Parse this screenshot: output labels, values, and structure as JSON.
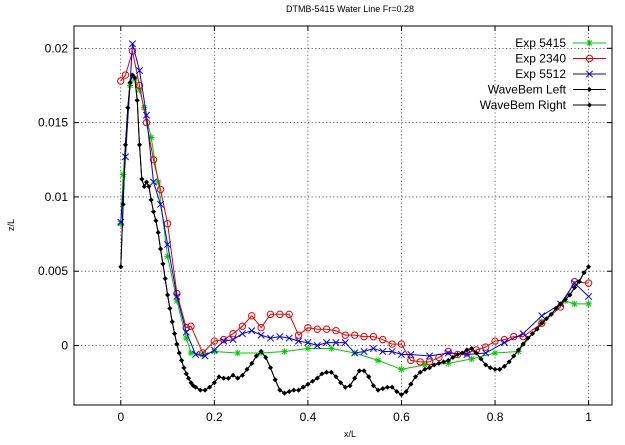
{
  "chart_data": {
    "type": "line",
    "title": "DTMB-5415 Water Line Fr=0.28",
    "xlabel": "x/L",
    "ylabel": "z/L",
    "xlim": [
      -0.1,
      1.05
    ],
    "ylim": [
      -0.004,
      0.0215
    ],
    "xticks": [
      0,
      0.2,
      0.4,
      0.6,
      0.8,
      1
    ],
    "xtick_labels": [
      "0",
      "0.2",
      "0.4",
      "0.6",
      "0.8",
      "1"
    ],
    "yticks": [
      0,
      0.005,
      0.01,
      0.015,
      0.02
    ],
    "ytick_labels": [
      "0",
      "0.005",
      "0.01",
      "0.015",
      "0.02"
    ],
    "grid": true,
    "legend_position": "top-right",
    "series": [
      {
        "name": "Exp 5415",
        "color": "#00cc00",
        "marker": "star",
        "x": [
          0,
          0.005,
          0.02,
          0.03,
          0.04,
          0.05,
          0.065,
          0.08,
          0.1,
          0.12,
          0.14,
          0.15,
          0.175,
          0.2,
          0.25,
          0.3,
          0.35,
          0.4,
          0.45,
          0.5,
          0.55,
          0.6,
          0.65,
          0.7,
          0.75,
          0.8,
          0.85,
          0.9,
          0.95,
          0.97,
          1.0
        ],
        "y": [
          0.0082,
          0.0115,
          0.0175,
          0.018,
          0.0172,
          0.016,
          0.014,
          0.011,
          0.006,
          0.003,
          0.0005,
          -0.0005,
          -0.0006,
          -0.0004,
          -0.0005,
          -0.0005,
          -0.0004,
          -0.0002,
          -0.0002,
          -0.0005,
          -0.001,
          -0.0016,
          -0.0013,
          -0.0012,
          -0.0009,
          -0.0005,
          -0.0004,
          0.0016,
          0.003,
          0.0028,
          0.0028
        ]
      },
      {
        "name": "Exp 2340",
        "color": "#ee0000",
        "marker": "circle",
        "x": [
          0,
          0.01,
          0.025,
          0.04,
          0.055,
          0.07,
          0.085,
          0.1,
          0.12,
          0.14,
          0.15,
          0.175,
          0.2,
          0.22,
          0.24,
          0.26,
          0.28,
          0.3,
          0.32,
          0.34,
          0.36,
          0.38,
          0.4,
          0.42,
          0.44,
          0.46,
          0.48,
          0.5,
          0.52,
          0.54,
          0.56,
          0.58,
          0.6,
          0.62,
          0.64,
          0.66,
          0.68,
          0.7,
          0.72,
          0.74,
          0.76,
          0.78,
          0.8,
          0.82,
          0.84,
          0.86,
          0.9,
          0.94,
          0.97,
          1.0
        ],
        "y": [
          0.0178,
          0.0182,
          0.0198,
          0.0175,
          0.015,
          0.0125,
          0.0105,
          0.0082,
          0.0035,
          0.0012,
          0.0013,
          -0.0005,
          0.0003,
          0.0004,
          0.0008,
          0.0013,
          0.002,
          0.0012,
          0.0021,
          0.0021,
          0.0021,
          0.0007,
          0.0012,
          0.0011,
          0.0011,
          0.001,
          0.0007,
          0.0007,
          0.0006,
          0.0006,
          0.0004,
          0.0001,
          0.0001,
          -0.001,
          -0.0011,
          -0.0011,
          -0.0008,
          -0.0004,
          -0.0006,
          -0.0005,
          -0.0003,
          -0.0001,
          0.0003,
          0.0004,
          0.0006,
          0.0006,
          0.0015,
          0.0026,
          0.0043,
          0.0042
        ]
      },
      {
        "name": "Exp 5512",
        "color": "#0000ee",
        "marker": "cross",
        "x": [
          0,
          0.01,
          0.025,
          0.04,
          0.055,
          0.07,
          0.085,
          0.1,
          0.12,
          0.14,
          0.16,
          0.18,
          0.2,
          0.22,
          0.24,
          0.26,
          0.28,
          0.3,
          0.32,
          0.34,
          0.36,
          0.38,
          0.4,
          0.42,
          0.44,
          0.46,
          0.48,
          0.5,
          0.52,
          0.54,
          0.56,
          0.58,
          0.6,
          0.62,
          0.66,
          0.7,
          0.74,
          0.78,
          0.82,
          0.86,
          0.9,
          0.94,
          0.97,
          1.0
        ],
        "y": [
          0.0083,
          0.0127,
          0.0203,
          0.0185,
          0.0155,
          0.011,
          0.0095,
          0.0068,
          0.0033,
          0.0009,
          -0.0006,
          -0.0007,
          -0.0003,
          0.0003,
          0.0004,
          0.0008,
          0.001,
          0.0007,
          0.0005,
          0.0006,
          0.0005,
          0.0003,
          0.0002,
          0.0,
          0.0002,
          0.0002,
          0.0002,
          -0.0005,
          -0.0004,
          -0.0002,
          -0.0004,
          -0.0004,
          -0.0006,
          -0.0006,
          -0.0007,
          -0.0005,
          -0.0006,
          -0.0005,
          0.0002,
          0.0008,
          0.002,
          0.0028,
          0.0042,
          0.0033
        ]
      },
      {
        "name": "WaveBem Left",
        "color": "#000000",
        "marker": "diamond",
        "x": [
          0,
          0.005,
          0.01,
          0.015,
          0.02,
          0.025,
          0.03,
          0.035,
          0.04,
          0.045,
          0.05,
          0.055,
          0.06,
          0.065,
          0.07,
          0.075,
          0.08,
          0.085,
          0.09,
          0.095,
          0.1,
          0.105,
          0.11,
          0.115,
          0.12,
          0.125,
          0.13,
          0.135,
          0.14,
          0.145,
          0.15,
          0.155,
          0.16,
          0.17,
          0.18,
          0.19,
          0.2,
          0.21,
          0.22,
          0.23,
          0.24,
          0.25,
          0.26,
          0.27,
          0.28,
          0.29,
          0.3,
          0.31,
          0.32,
          0.33,
          0.34,
          0.35,
          0.36,
          0.37,
          0.38,
          0.39,
          0.4,
          0.41,
          0.42,
          0.43,
          0.44,
          0.45,
          0.46,
          0.47,
          0.48,
          0.49,
          0.5,
          0.51,
          0.52,
          0.53,
          0.54,
          0.55,
          0.56,
          0.57,
          0.58,
          0.59,
          0.6,
          0.61,
          0.62,
          0.63,
          0.64,
          0.65,
          0.66,
          0.67,
          0.68,
          0.69,
          0.7,
          0.71,
          0.72,
          0.73,
          0.74,
          0.75,
          0.76,
          0.77,
          0.78,
          0.79,
          0.8,
          0.81,
          0.82,
          0.83,
          0.84,
          0.85,
          0.86,
          0.87,
          0.88,
          0.89,
          0.9,
          0.91,
          0.92,
          0.93,
          0.94,
          0.95,
          0.96,
          0.97,
          0.98,
          0.99,
          1.0
        ],
        "y": [
          0.0053,
          0.0095,
          0.0135,
          0.016,
          0.0177,
          0.0182,
          0.018,
          0.0165,
          0.0135,
          0.0112,
          0.0107,
          0.011,
          0.0107,
          0.0098,
          0.009,
          0.0084,
          0.0076,
          0.0065,
          0.0055,
          0.0045,
          0.0034,
          0.0025,
          0.0016,
          0.0008,
          0.0001,
          -0.0005,
          -0.001,
          -0.0015,
          -0.0019,
          -0.0022,
          -0.0025,
          -0.0027,
          -0.0028,
          -0.003,
          -0.003,
          -0.0028,
          -0.0025,
          -0.0021,
          -0.0022,
          -0.0022,
          -0.002,
          -0.0022,
          -0.002,
          -0.0016,
          -0.0012,
          -0.0007,
          -0.0004,
          -0.0008,
          -0.0015,
          -0.0023,
          -0.003,
          -0.0032,
          -0.0031,
          -0.003,
          -0.003,
          -0.0028,
          -0.0026,
          -0.0024,
          -0.0022,
          -0.0019,
          -0.0018,
          -0.0018,
          -0.0021,
          -0.0025,
          -0.0028,
          -0.0027,
          -0.0022,
          -0.0017,
          -0.0017,
          -0.0021,
          -0.0027,
          -0.003,
          -0.0029,
          -0.0028,
          -0.0028,
          -0.0031,
          -0.0033,
          -0.0031,
          -0.0026,
          -0.0021,
          -0.0018,
          -0.0016,
          -0.0015,
          -0.0013,
          -0.0012,
          -0.0011,
          -0.001,
          -0.0008,
          -0.0006,
          -0.0005,
          -0.0003,
          -0.0002,
          -0.0005,
          -0.0009,
          -0.0013,
          -0.0015,
          -0.0016,
          -0.0016,
          -0.0014,
          -0.0011,
          -0.0007,
          -0.0003,
          0.0001,
          0.0005,
          0.0008,
          0.0011,
          0.0015,
          0.0018,
          0.0021,
          0.0025,
          0.0028,
          0.0031,
          0.0034,
          0.0039,
          0.0043,
          0.0049,
          0.0053
        ]
      },
      {
        "name": "WaveBem Right",
        "color": "#000000",
        "marker": "diamond",
        "x": [
          0,
          0.005,
          0.01,
          0.015,
          0.02,
          0.025,
          0.03,
          0.035,
          0.04,
          0.045,
          0.05,
          0.055,
          0.06,
          0.065,
          0.07,
          0.075,
          0.08,
          0.085,
          0.09,
          0.095,
          0.1,
          0.105,
          0.11,
          0.115,
          0.12,
          0.125,
          0.13,
          0.135,
          0.14,
          0.145,
          0.15,
          0.155,
          0.16,
          0.17,
          0.18,
          0.19,
          0.2,
          0.21,
          0.22,
          0.23,
          0.24,
          0.25,
          0.26,
          0.27,
          0.28,
          0.29,
          0.3,
          0.31,
          0.32,
          0.33,
          0.34,
          0.35,
          0.36,
          0.37,
          0.38,
          0.39,
          0.4,
          0.41,
          0.42,
          0.43,
          0.44,
          0.45,
          0.46,
          0.47,
          0.48,
          0.49,
          0.5,
          0.51,
          0.52,
          0.53,
          0.54,
          0.55,
          0.56,
          0.57,
          0.58,
          0.59,
          0.6,
          0.61,
          0.62,
          0.63,
          0.64,
          0.65,
          0.66,
          0.67,
          0.68,
          0.69,
          0.7,
          0.71,
          0.72,
          0.73,
          0.74,
          0.75,
          0.76,
          0.77,
          0.78,
          0.79,
          0.8,
          0.81,
          0.82,
          0.83,
          0.84,
          0.85,
          0.86,
          0.87,
          0.88,
          0.89,
          0.9,
          0.91,
          0.92,
          0.93,
          0.94,
          0.95,
          0.96,
          0.97,
          0.98,
          0.99,
          1.0
        ],
        "y": [
          0.0053,
          0.0095,
          0.0135,
          0.016,
          0.0177,
          0.0182,
          0.018,
          0.0165,
          0.0135,
          0.0112,
          0.0107,
          0.011,
          0.0107,
          0.0098,
          0.009,
          0.0084,
          0.0076,
          0.0065,
          0.0055,
          0.0045,
          0.0034,
          0.0025,
          0.0016,
          0.0008,
          0.0001,
          -0.0005,
          -0.001,
          -0.0015,
          -0.0019,
          -0.0022,
          -0.0025,
          -0.0027,
          -0.0028,
          -0.003,
          -0.003,
          -0.0028,
          -0.0025,
          -0.0021,
          -0.0022,
          -0.0022,
          -0.002,
          -0.0022,
          -0.002,
          -0.0016,
          -0.0012,
          -0.0007,
          -0.0004,
          -0.0008,
          -0.0015,
          -0.0023,
          -0.003,
          -0.0032,
          -0.0031,
          -0.003,
          -0.003,
          -0.0028,
          -0.0026,
          -0.0024,
          -0.0022,
          -0.0019,
          -0.0018,
          -0.0018,
          -0.0021,
          -0.0025,
          -0.0028,
          -0.0027,
          -0.0022,
          -0.0017,
          -0.0017,
          -0.0021,
          -0.0027,
          -0.003,
          -0.0029,
          -0.0028,
          -0.0028,
          -0.0031,
          -0.0033,
          -0.0031,
          -0.0026,
          -0.0021,
          -0.0018,
          -0.0016,
          -0.0015,
          -0.0013,
          -0.0012,
          -0.0011,
          -0.001,
          -0.0008,
          -0.0006,
          -0.0005,
          -0.0003,
          -0.0002,
          -0.0005,
          -0.0009,
          -0.0013,
          -0.0015,
          -0.0016,
          -0.0016,
          -0.0014,
          -0.0011,
          -0.0007,
          -0.0003,
          0.0001,
          0.0005,
          0.0008,
          0.0011,
          0.0015,
          0.0018,
          0.0021,
          0.0025,
          0.0028,
          0.0031,
          0.0034,
          0.0039,
          0.0043,
          0.0049,
          0.0053
        ]
      }
    ]
  }
}
